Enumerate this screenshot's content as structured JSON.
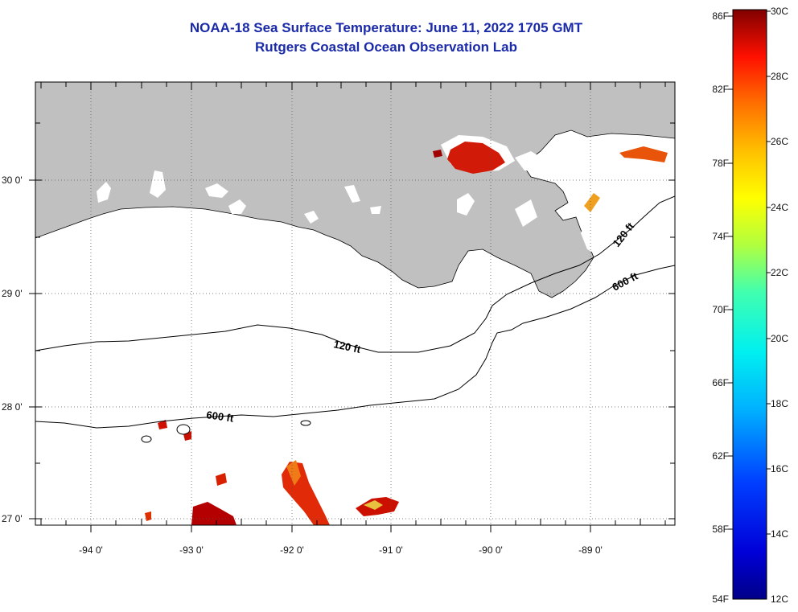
{
  "title": "NOAA-18 Sea Surface Temperature:  June 11, 2022 1705 GMT",
  "subtitle": "Rutgers Coastal Ocean Observation Lab",
  "lon_ticks": [
    "-94 0'",
    "-93 0'",
    "-92 0'",
    "-91 0'",
    "-90 0'",
    "-89 0'"
  ],
  "lat_ticks": [
    "30 0'",
    "29 0'",
    "28 0'",
    "27 0'"
  ],
  "contours": [
    "120 ft",
    "120 ft",
    "600 ft",
    "600 ft"
  ],
  "colorbar": {
    "fahrenheit": [
      "86F",
      "82F",
      "78F",
      "74F",
      "70F",
      "66F",
      "62F",
      "58F",
      "54F"
    ],
    "celsius": [
      "30C",
      "28C",
      "26C",
      "24C",
      "22C",
      "20C",
      "18C",
      "16C",
      "14C",
      "12C"
    ]
  },
  "colors": {
    "land": "#c0c0c0",
    "title": "#1a2aa8",
    "hot": "#b40000",
    "warm": "#e8400a"
  }
}
